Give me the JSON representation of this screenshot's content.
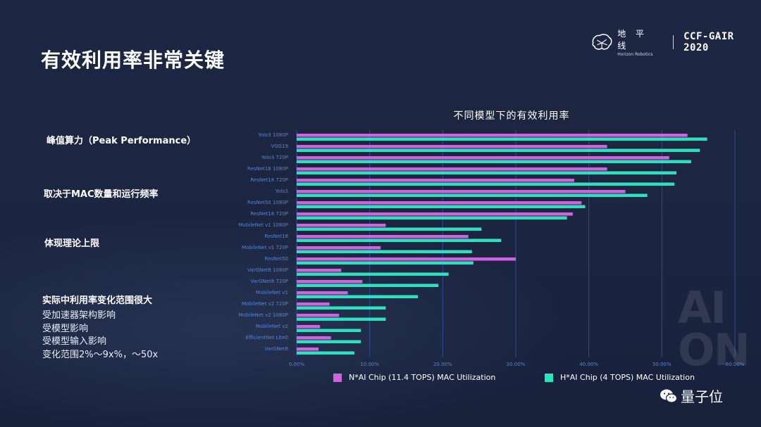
{
  "header": {
    "brand_cn": "地 平 线",
    "brand_en": "Horizon Robotics",
    "event": "CCF-GAIR 2020"
  },
  "slide_title": "有效利用率非常关键",
  "left_points": {
    "p1": "峰值算力（Peak Performance）",
    "p2": "取决于MAC数量和运行频率",
    "p3": "体现理论上限",
    "p4": "实际中利用率变化范围很大",
    "p4_sub": [
      "受加速器架构影响",
      "受模型影响",
      "受模型输入影响",
      "变化范围2%～9x%，～50x"
    ]
  },
  "watermark": {
    "big": "AI\nON",
    "wechat": "量子位"
  },
  "colors": {
    "n_series": "#cc66dd",
    "h_series": "#1fe8be",
    "axis_label": "#4f86e0",
    "grid": "#2e4b9a"
  },
  "chart_data": {
    "type": "bar",
    "orientation": "horizontal",
    "title": "不同模型下的有效利用率",
    "categories": [
      "Yolo3 1080P",
      "VGG19",
      "Yolo3 720P",
      "ResNet18 1080P",
      "ResNet18 720P",
      "Yolo3",
      "ResNet50 1080P",
      "ResNet18 720P",
      "MobileNet v1 1080P",
      "ResNet18",
      "MobileNet v1 720P",
      "ResNet50",
      "VarGNet8 1080P",
      "VarGNet8 720P",
      "MobileNet v1",
      "MobileNet v2 720P",
      "MobileNet v2 1080P",
      "MobileNet v2",
      "EfficientNet Lite0",
      "VarGNet8"
    ],
    "series": [
      {
        "name": "N*AI Chip (11.4 TOPS) MAC Utilization",
        "values": [
          53.5,
          42.5,
          51.0,
          42.5,
          38.0,
          45.0,
          39.0,
          37.8,
          12.2,
          23.5,
          11.5,
          30.0,
          6.1,
          9.0,
          7.0,
          4.5,
          5.8,
          3.2,
          4.7,
          3.0
        ]
      },
      {
        "name": "H*AI Chip (4 TOPS) MAC Utilization",
        "values": [
          56.2,
          55.2,
          54.0,
          52.0,
          51.7,
          48.0,
          39.5,
          37.0,
          25.3,
          28.0,
          24.0,
          24.2,
          20.8,
          19.4,
          16.6,
          12.2,
          12.2,
          8.8,
          8.8,
          7.9
        ]
      }
    ],
    "x_ticks": [
      "0.00%",
      "10.00%",
      "20.00%",
      "30.00%",
      "40.00%",
      "50.00%",
      "60.00%"
    ],
    "xlim": [
      0,
      60
    ],
    "grid": true,
    "legend_position": "bottom"
  }
}
